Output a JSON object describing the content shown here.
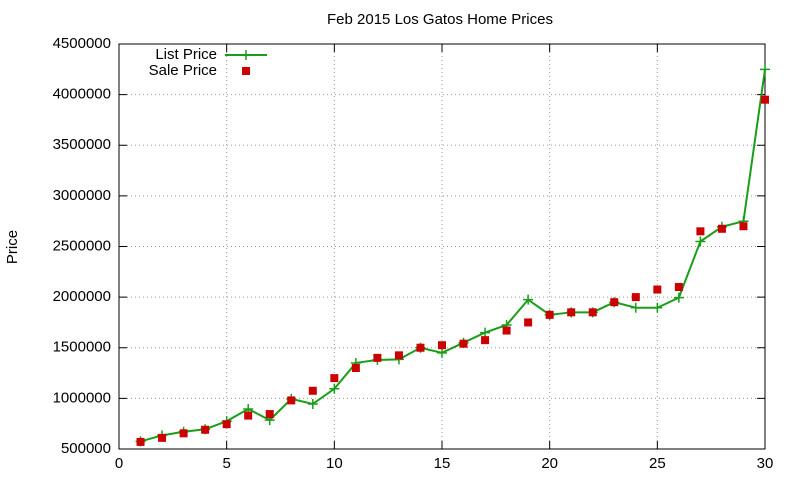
{
  "chart_data": {
    "type": "line",
    "title": "Feb 2015 Los Gatos Home Prices",
    "y_label": "Price",
    "x": [
      1,
      2,
      3,
      4,
      5,
      6,
      7,
      8,
      9,
      10,
      11,
      12,
      13,
      14,
      15,
      16,
      17,
      18,
      19,
      20,
      21,
      22,
      23,
      24,
      25,
      26,
      27,
      28,
      29,
      30
    ],
    "series": [
      {
        "name": "List Price",
        "color": "#1a9e1a",
        "style": "linespoints",
        "values": [
          575000,
          635000,
          670000,
          695000,
          775000,
          895000,
          785000,
          995000,
          945000,
          1095000,
          1350000,
          1380000,
          1385000,
          1500000,
          1450000,
          1550000,
          1650000,
          1725000,
          1975000,
          1825000,
          1850000,
          1850000,
          1950000,
          1895000,
          1895000,
          1995000,
          2550000,
          2695000,
          2750000,
          4250000
        ]
      },
      {
        "name": "Sale Price",
        "color": "#cc0000",
        "style": "points",
        "values": [
          570000,
          610000,
          655000,
          690000,
          745000,
          830000,
          845000,
          980000,
          1075000,
          1200000,
          1300000,
          1400000,
          1425000,
          1500000,
          1525000,
          1540000,
          1575000,
          1670000,
          1750000,
          1825000,
          1850000,
          1850000,
          1950000,
          2000000,
          2075000,
          2100000,
          2650000,
          2675000,
          2700000,
          3950000
        ]
      }
    ],
    "xlim": [
      0,
      30
    ],
    "xticks": [
      0,
      5,
      10,
      15,
      20,
      25,
      30
    ],
    "ylim": [
      500000,
      4500000
    ],
    "yticks": [
      500000,
      1000000,
      1500000,
      2000000,
      2500000,
      3000000,
      3500000,
      4000000,
      4500000
    ],
    "grid": true,
    "legend": "top-left"
  }
}
